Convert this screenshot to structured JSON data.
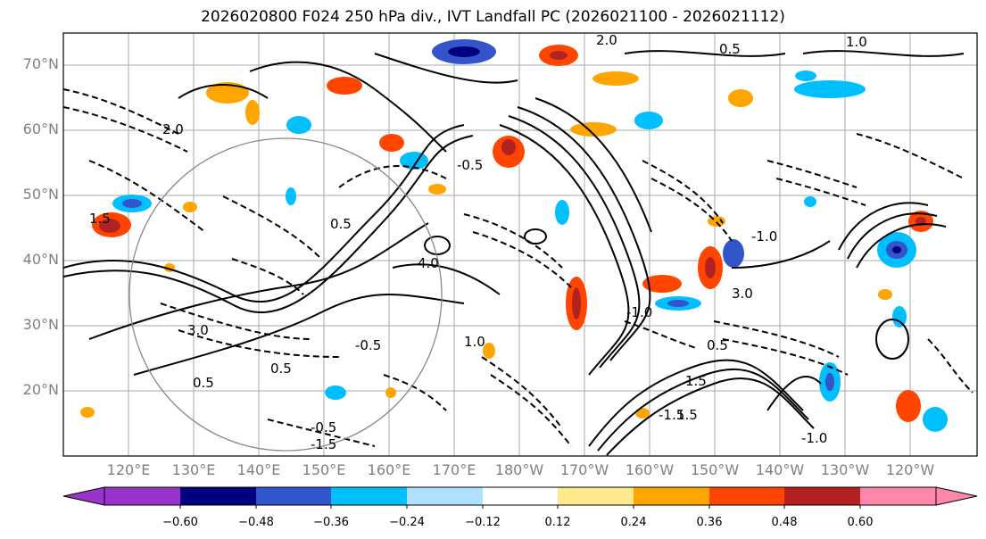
{
  "title": "2026020800 F024 250 hPa div., IVT Landfall PC (2026021100 - 2026021112)",
  "lat_labels": [
    "70°N",
    "60°N",
    "50°N",
    "40°N",
    "30°N",
    "20°N"
  ],
  "lon_labels": [
    "120°E",
    "130°E",
    "140°E",
    "150°E",
    "160°E",
    "170°E",
    "180°W",
    "170°W",
    "160°W",
    "150°W",
    "140°W",
    "130°W",
    "120°W"
  ],
  "contour_labels": [
    "2.0",
    "0.5",
    "1.0",
    "-0.5",
    "-1.0",
    "-1.5",
    "1.5",
    "2.0",
    "-0.5",
    "0.5",
    "1.5",
    "4.0",
    "3.0",
    "0.5",
    "-0.5",
    "1.0",
    "-1.5",
    "1.5",
    "-1.0",
    "0.5",
    "-1.0",
    "3.0",
    "0.5"
  ],
  "colorbar": {
    "ticks": [
      "−0.60",
      "−0.48",
      "−0.36",
      "−0.24",
      "−0.12",
      "0.12",
      "0.24",
      "0.36",
      "0.48",
      "0.60"
    ],
    "colors": [
      "#9933cc",
      "#000080",
      "#3355cc",
      "#00bfff",
      "#b0e0ff",
      "#ffffff",
      "#ffe98a",
      "#ffa500",
      "#ff4500",
      "#b22222",
      "#ff88aa"
    ]
  },
  "map": {
    "lat_range": [
      10,
      75
    ],
    "lon_range": [
      "110°E",
      "250°E"
    ],
    "contour_color": "#000000",
    "gridline_color": "#aaaaaa"
  }
}
